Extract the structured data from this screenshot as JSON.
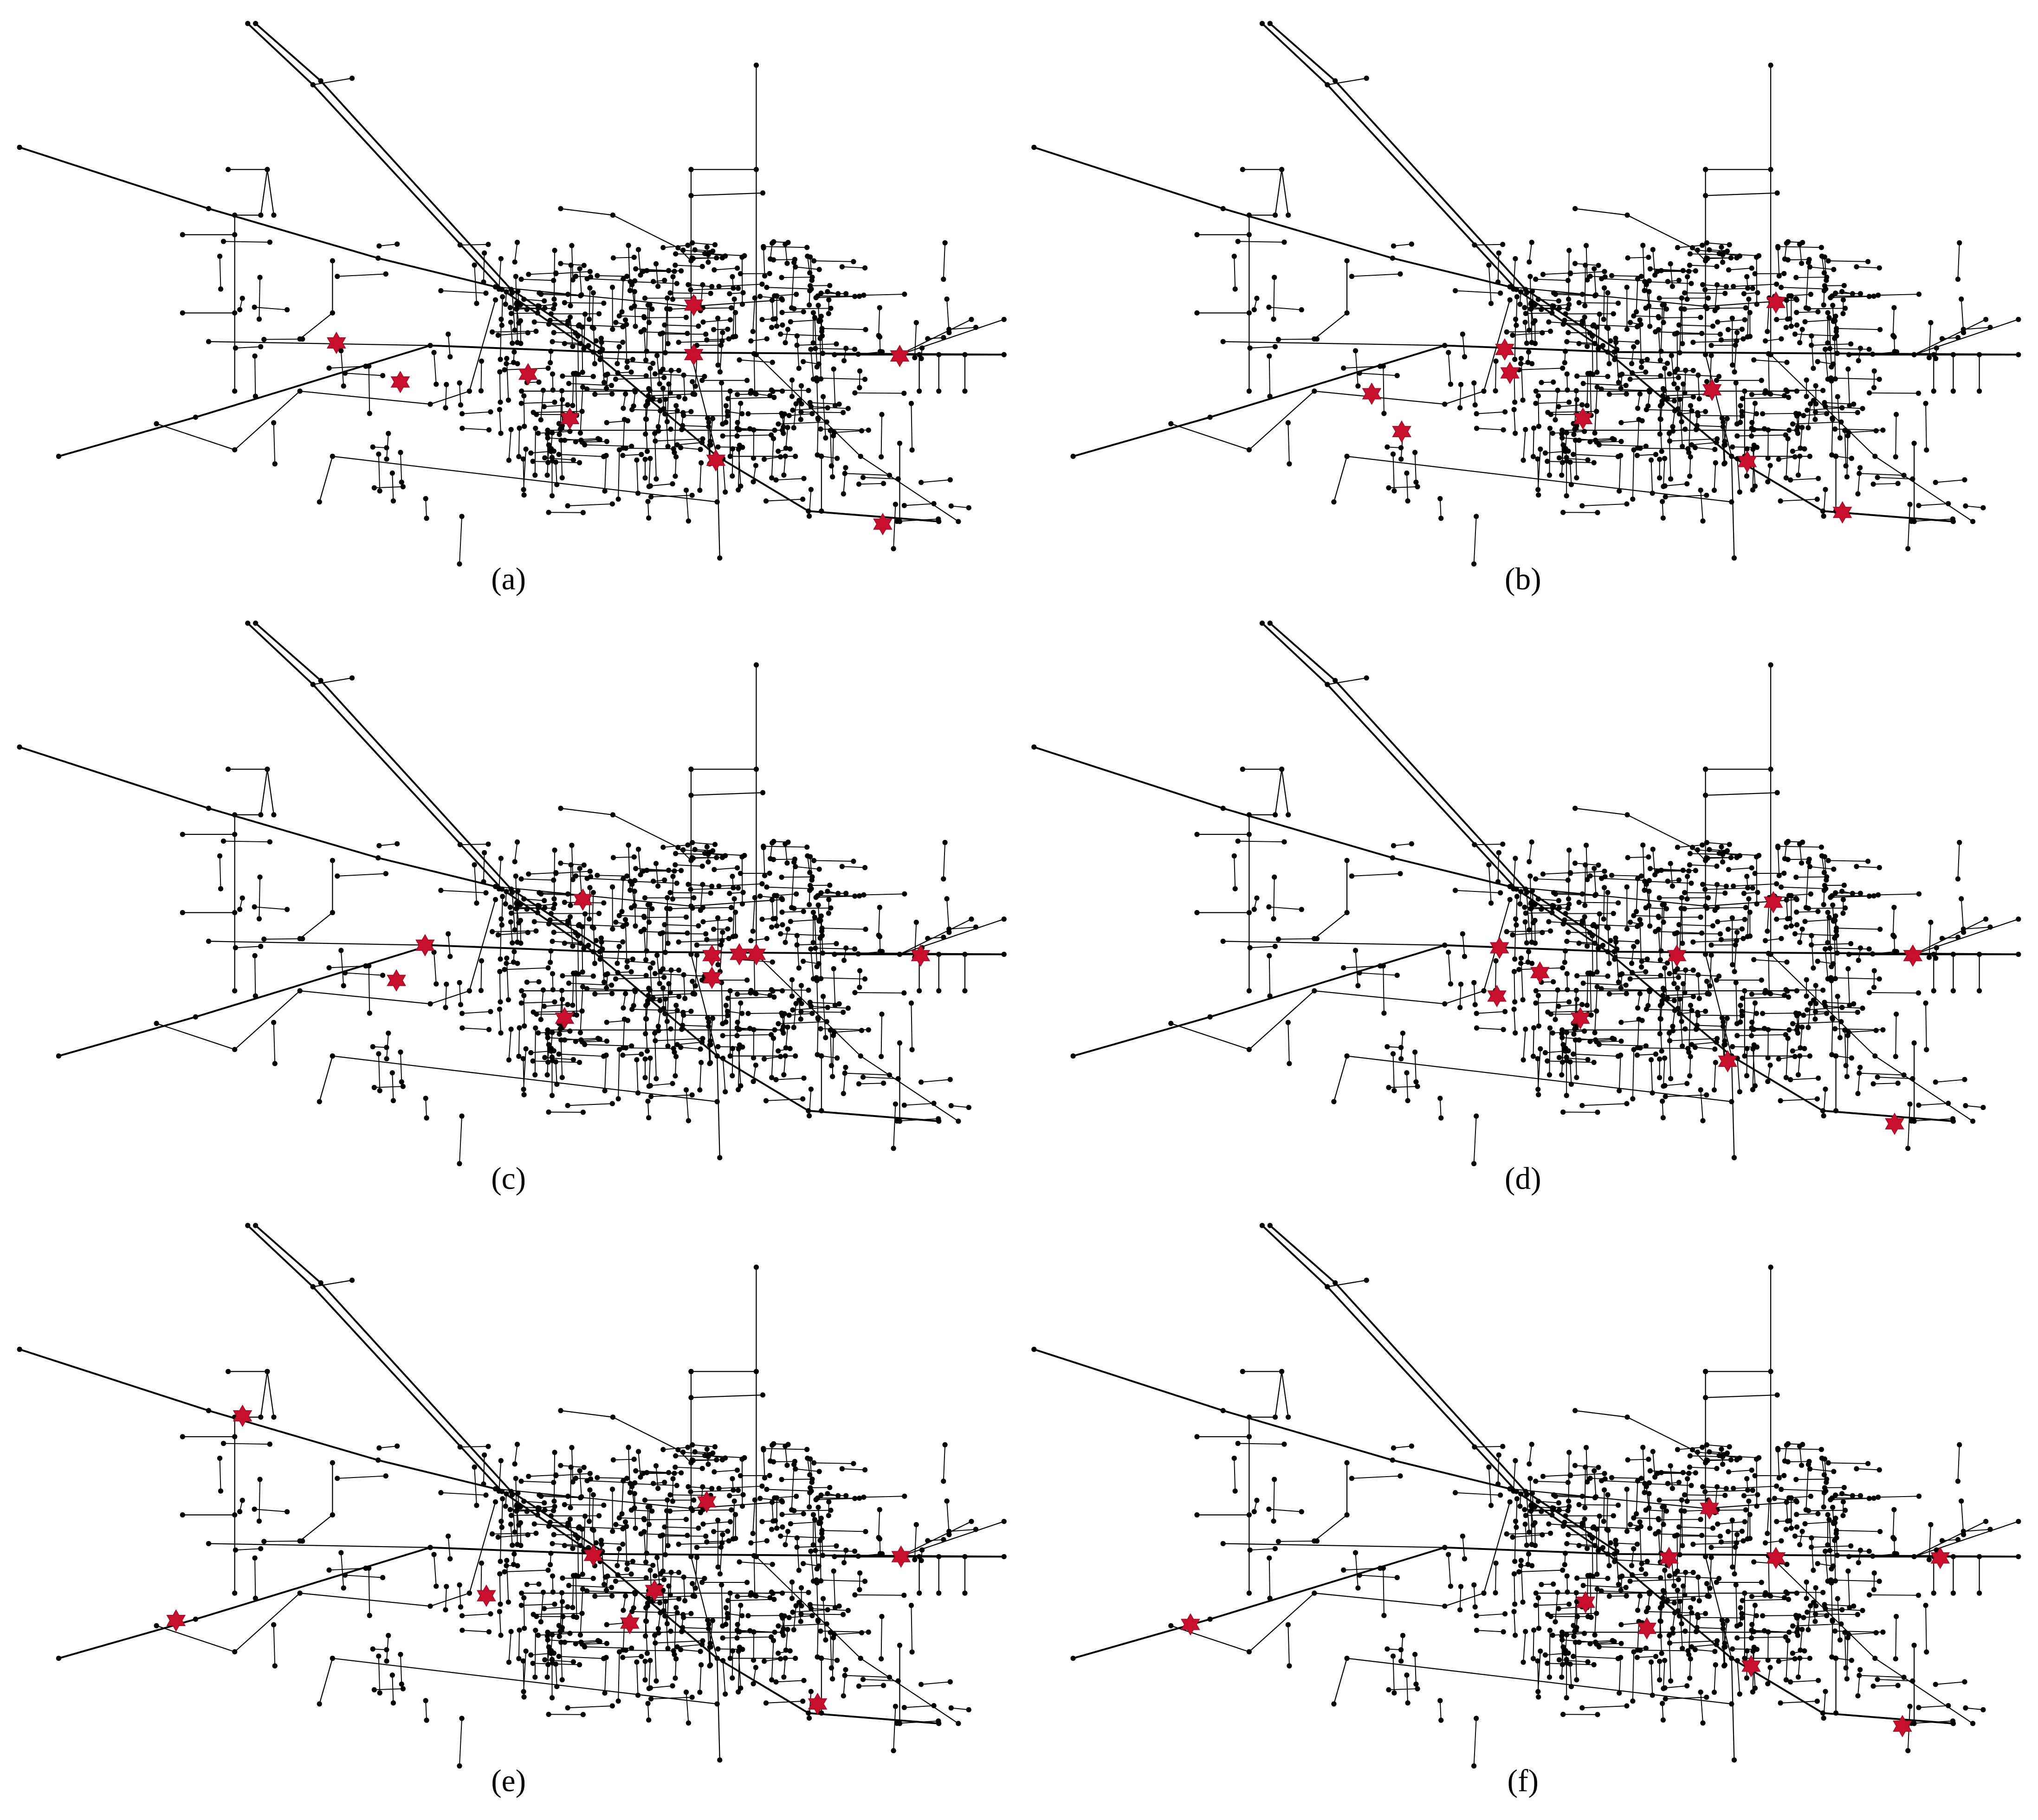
{
  "panels": [
    {
      "label": "(a)"
    },
    {
      "label": "(b)"
    },
    {
      "label": "(c)"
    },
    {
      "label": "(d)"
    },
    {
      "label": "(e)"
    },
    {
      "label": "(f)"
    }
  ]
}
